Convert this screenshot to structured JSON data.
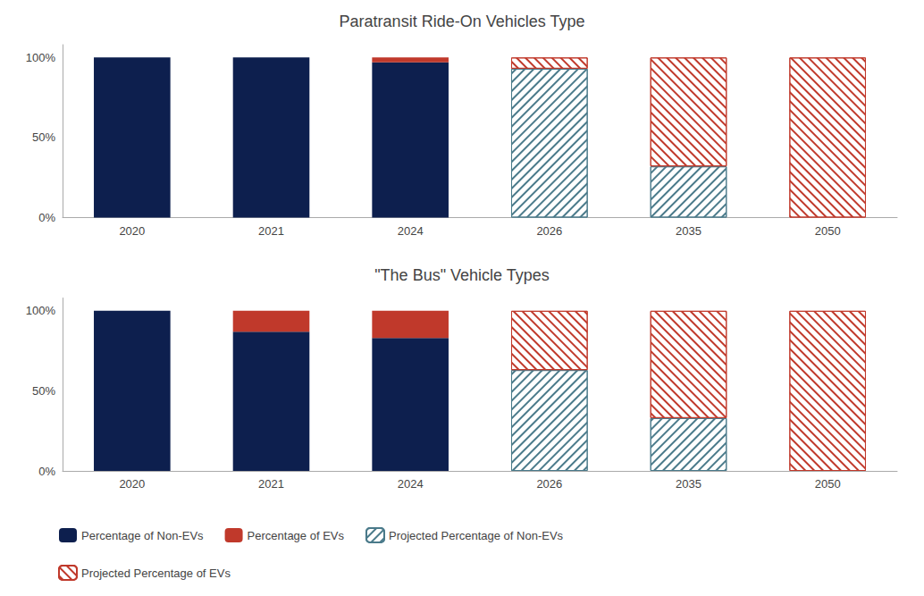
{
  "chart_data": [
    {
      "type": "bar",
      "title": "Paratransit Ride-On Vehicles Type",
      "categories": [
        "2020",
        "2021",
        "2024",
        "2026",
        "2035",
        "2050"
      ],
      "series": [
        {
          "name": "Percentage of Non-EVs",
          "color": "#0D1F4E",
          "values": [
            100,
            100,
            97,
            0,
            0,
            0
          ]
        },
        {
          "name": "Percentage of EVs",
          "color": "#C0392B",
          "values": [
            0,
            0,
            3,
            0,
            0,
            0
          ]
        },
        {
          "name": "Projected Percentage of Non-EVs",
          "color": "#4A7A8A",
          "values": [
            0,
            0,
            0,
            93,
            32,
            0
          ]
        },
        {
          "name": "Projected Percentage of EVs",
          "color": "#C0392B",
          "values": [
            0,
            0,
            0,
            7,
            68,
            100
          ]
        }
      ],
      "stacked": true,
      "ylim": [
        0,
        108
      ],
      "yticks": [
        {
          "value": 0,
          "label": "0%"
        },
        {
          "value": 50,
          "label": "50%"
        },
        {
          "value": 100,
          "label": "100%"
        }
      ],
      "grid": false,
      "legend": "lower left"
    },
    {
      "type": "bar",
      "title": "\"The Bus\" Vehicle Types",
      "categories": [
        "2020",
        "2021",
        "2024",
        "2026",
        "2035",
        "2050"
      ],
      "series": [
        {
          "name": "Percentage of Non-EVs",
          "color": "#0D1F4E",
          "values": [
            100,
            87,
            83,
            0,
            0,
            0
          ]
        },
        {
          "name": "Percentage of EVs",
          "color": "#C0392B",
          "values": [
            0,
            13,
            17,
            0,
            0,
            0
          ]
        },
        {
          "name": "Projected Percentage of Non-EVs",
          "color": "#4A7A8A",
          "values": [
            0,
            0,
            0,
            63,
            33,
            0
          ]
        },
        {
          "name": "Projected Percentage of EVs",
          "color": "#C0392B",
          "values": [
            0,
            0,
            0,
            37,
            67,
            100
          ]
        }
      ],
      "stacked": true,
      "ylim": [
        0,
        108
      ],
      "yticks": [
        {
          "value": 0,
          "label": "0%"
        },
        {
          "value": 50,
          "label": "50%"
        },
        {
          "value": 100,
          "label": "100%"
        }
      ],
      "grid": false,
      "legend": "lower left"
    }
  ]
}
